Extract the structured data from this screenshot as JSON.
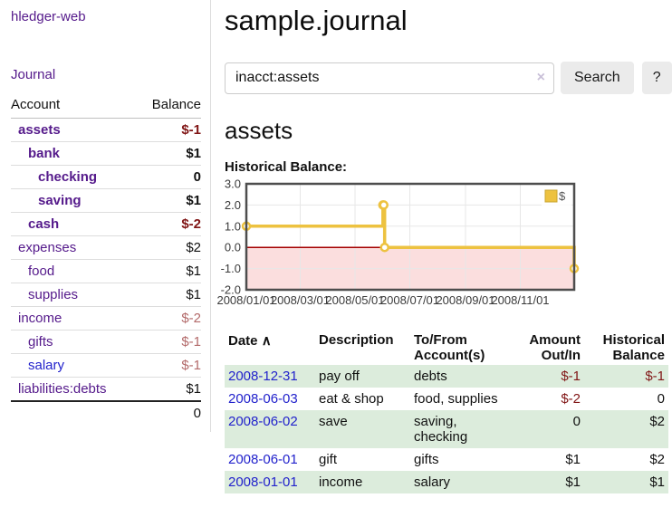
{
  "colors": {
    "purple_link": "#551a8b",
    "blue_link": "#2222cc",
    "negative_strong": "#801515",
    "negative_light": "#b36a6a",
    "row_stripe_green": "#dcecdc",
    "series_yellow": "#edc240"
  },
  "sidebar": {
    "brand": "hledger-web",
    "journal_link": "Journal",
    "accounts_table": {
      "account_header": "Account",
      "balance_header": "Balance",
      "rows": [
        {
          "name": "assets",
          "balance": "$-1",
          "level": 0,
          "bold": true,
          "neg": "strong"
        },
        {
          "name": "bank",
          "balance": "$1",
          "level": 1,
          "bold": true,
          "neg": null
        },
        {
          "name": "checking",
          "balance": "0",
          "level": 2,
          "bold": true,
          "neg": null
        },
        {
          "name": "saving",
          "balance": "$1",
          "level": 2,
          "bold": true,
          "neg": null
        },
        {
          "name": "cash",
          "balance": "$-2",
          "level": 1,
          "bold": true,
          "neg": "strong"
        },
        {
          "name": "expenses",
          "balance": "$2",
          "level": 0,
          "bold": false,
          "neg": null
        },
        {
          "name": "food",
          "balance": "$1",
          "level": 1,
          "bold": false,
          "neg": null
        },
        {
          "name": "supplies",
          "balance": "$1",
          "level": 1,
          "bold": false,
          "neg": null
        },
        {
          "name": "income",
          "balance": "$-2",
          "level": 0,
          "bold": false,
          "neg": "light"
        },
        {
          "name": "gifts",
          "balance": "$-1",
          "level": 1,
          "bold": false,
          "neg": "light"
        },
        {
          "name": "salary",
          "balance": "$-1",
          "level": 1,
          "bold": false,
          "neg": "light",
          "link": "blue"
        },
        {
          "name": "liabilities:debts",
          "balance": "$1",
          "level": 0,
          "bold": false,
          "neg": null
        }
      ],
      "total": "0"
    }
  },
  "main": {
    "title": "sample.journal",
    "search": {
      "value": "inacct:assets",
      "clear_icon": "×",
      "search_button": "Search",
      "help_button": "?"
    },
    "account_heading": "assets",
    "chart_label": "Historical Balance:"
  },
  "chart_data": {
    "type": "line",
    "title": "Historical Balance",
    "step": true,
    "x_range": [
      "2008-01-01",
      "2008-12-31"
    ],
    "ylim": [
      -2,
      3
    ],
    "y_ticks": [
      3,
      2,
      1,
      0,
      -1,
      -2
    ],
    "x_ticks": [
      "2008/01/01",
      "2008/03/01",
      "2008/05/01",
      "2008/07/01",
      "2008/09/01",
      "2008/11/01"
    ],
    "series": [
      {
        "name": "$",
        "color": "#edc240",
        "points": [
          [
            "2008-01-01",
            1
          ],
          [
            "2008-06-01",
            2
          ],
          [
            "2008-06-02",
            2
          ],
          [
            "2008-06-03",
            0
          ],
          [
            "2008-12-31",
            -1
          ]
        ]
      }
    ],
    "legend": {
      "label": "$",
      "position": "top-right"
    },
    "grid": true,
    "grid_color": "#e7e7e7",
    "zero_line_color": "#a40000",
    "negative_fill": "#fbdede",
    "border_color": "#4d4d4d"
  },
  "transactions": {
    "sort_icon": "∧",
    "headers": [
      "Date",
      "Description",
      "To/From Account(s)",
      "Amount Out/In",
      "Historical Balance"
    ],
    "rows": [
      {
        "date": "2008-12-31",
        "description": "pay off",
        "accounts": "debts",
        "amount": "$-1",
        "balance": "$-1",
        "amount_neg": true,
        "balance_neg": true
      },
      {
        "date": "2008-06-03",
        "description": "eat & shop",
        "accounts": "food, supplies",
        "amount": "$-2",
        "balance": "0",
        "amount_neg": true,
        "balance_neg": false
      },
      {
        "date": "2008-06-02",
        "description": "save",
        "accounts": "saving, checking",
        "amount": "0",
        "balance": "$2",
        "amount_neg": false,
        "balance_neg": false
      },
      {
        "date": "2008-06-01",
        "description": "gift",
        "accounts": "gifts",
        "amount": "$1",
        "balance": "$2",
        "amount_neg": false,
        "balance_neg": false
      },
      {
        "date": "2008-01-01",
        "description": "income",
        "accounts": "salary",
        "amount": "$1",
        "balance": "$1",
        "amount_neg": false,
        "balance_neg": false
      }
    ]
  }
}
